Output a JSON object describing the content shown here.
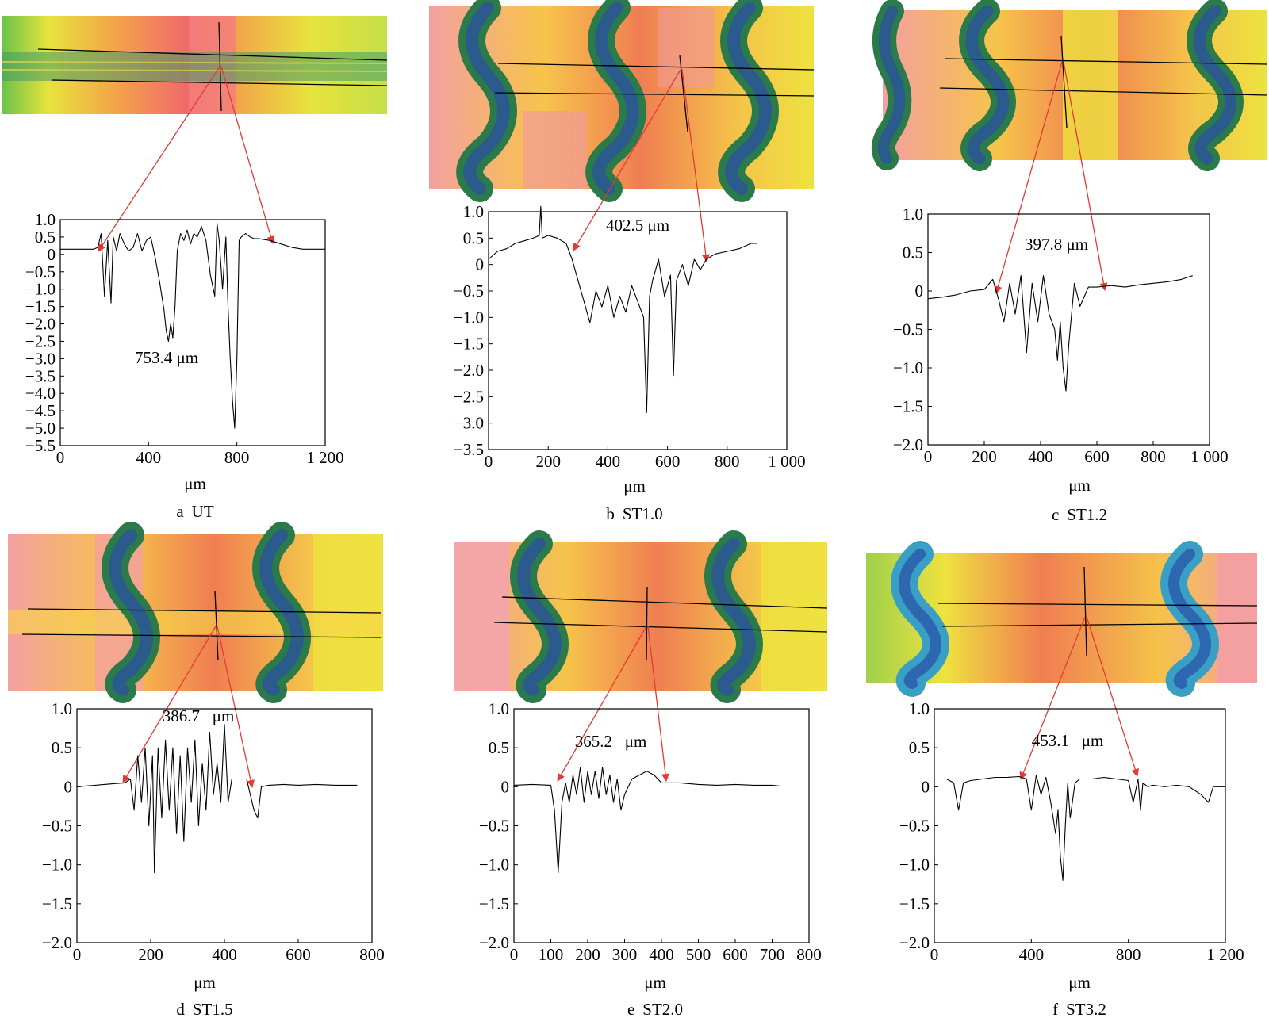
{
  "figure": {
    "panels": [
      {
        "id": "a",
        "caption_letter": "a",
        "caption_name": "UT",
        "measurement": "753.4 μm",
        "xlabel": "μm",
        "xticks": [
          {
            "v": 0,
            "t": "0"
          },
          {
            "v": 400,
            "t": "400"
          },
          {
            "v": 800,
            "t": "800"
          },
          {
            "v": 1200,
            "t": "1 200"
          }
        ],
        "yticks": [
          {
            "v": 1.0,
            "t": "1.0"
          },
          {
            "v": 0.5,
            "t": "0.5"
          },
          {
            "v": 0,
            "t": "0"
          },
          {
            "v": -0.5,
            "t": "−0.5"
          },
          {
            "v": -1.0,
            "t": "−1.0"
          },
          {
            "v": -1.5,
            "t": "−1.5"
          },
          {
            "v": -2.0,
            "t": "−2.0"
          },
          {
            "v": -2.5,
            "t": "−2.5"
          },
          {
            "v": -3.0,
            "t": "−3.0"
          },
          {
            "v": -3.5,
            "t": "−3.5"
          },
          {
            "v": -4.0,
            "t": "−4.0"
          },
          {
            "v": -4.5,
            "t": "−4.5"
          },
          {
            "v": -5.0,
            "t": "−5.0"
          },
          {
            "v": -5.5,
            "t": "−5.5"
          }
        ]
      },
      {
        "id": "b",
        "caption_letter": "b",
        "caption_name": "ST1.0",
        "measurement": "402.5 μm",
        "xlabel": "μm",
        "xticks": [
          {
            "v": 0,
            "t": "0"
          },
          {
            "v": 200,
            "t": "200"
          },
          {
            "v": 400,
            "t": "400"
          },
          {
            "v": 600,
            "t": "600"
          },
          {
            "v": 800,
            "t": "800"
          },
          {
            "v": 1000,
            "t": "1 000"
          }
        ],
        "yticks": [
          {
            "v": 1.0,
            "t": "1.0"
          },
          {
            "v": 0.5,
            "t": "0.5"
          },
          {
            "v": 0,
            "t": "0"
          },
          {
            "v": -0.5,
            "t": "−0.5"
          },
          {
            "v": -1.0,
            "t": "−1.0"
          },
          {
            "v": -1.5,
            "t": "−1.5"
          },
          {
            "v": -2.0,
            "t": "−2.0"
          },
          {
            "v": -2.5,
            "t": "−2.5"
          },
          {
            "v": -3.0,
            "t": "−3.0"
          },
          {
            "v": -3.5,
            "t": "−3.5"
          }
        ]
      },
      {
        "id": "c",
        "caption_letter": "c",
        "caption_name": "ST1.2",
        "measurement": "397.8 μm",
        "xlabel": "μm",
        "xticks": [
          {
            "v": 0,
            "t": "0"
          },
          {
            "v": 200,
            "t": "200"
          },
          {
            "v": 400,
            "t": "400"
          },
          {
            "v": 600,
            "t": "600"
          },
          {
            "v": 800,
            "t": "800"
          },
          {
            "v": 1000,
            "t": "1 000"
          }
        ],
        "yticks": [
          {
            "v": 1.0,
            "t": "1.0"
          },
          {
            "v": 0.5,
            "t": "0.5"
          },
          {
            "v": 0,
            "t": "0"
          },
          {
            "v": -0.5,
            "t": "−0.5"
          },
          {
            "v": -1.0,
            "t": "−1.0"
          },
          {
            "v": -1.5,
            "t": "−1.5"
          },
          {
            "v": -2.0,
            "t": "−2.0"
          }
        ]
      },
      {
        "id": "d",
        "caption_letter": "d",
        "caption_name": "ST1.5",
        "measurement": "386.7   μm",
        "xlabel": "μm",
        "xticks": [
          {
            "v": 0,
            "t": "0"
          },
          {
            "v": 200,
            "t": "200"
          },
          {
            "v": 400,
            "t": "400"
          },
          {
            "v": 600,
            "t": "600"
          },
          {
            "v": 800,
            "t": "800"
          }
        ],
        "yticks": [
          {
            "v": 1.0,
            "t": "1.0"
          },
          {
            "v": 0.5,
            "t": "0.5"
          },
          {
            "v": 0,
            "t": "0"
          },
          {
            "v": -0.5,
            "t": "−0.5"
          },
          {
            "v": -1.0,
            "t": "−1.0"
          },
          {
            "v": -1.5,
            "t": "−1.5"
          },
          {
            "v": -2.0,
            "t": "−2.0"
          }
        ]
      },
      {
        "id": "e",
        "caption_letter": "e",
        "caption_name": "ST2.0",
        "measurement": "365.2   μm",
        "xlabel": "μm",
        "xticks": [
          {
            "v": 0,
            "t": "0"
          },
          {
            "v": 100,
            "t": "100"
          },
          {
            "v": 200,
            "t": "200"
          },
          {
            "v": 300,
            "t": "300"
          },
          {
            "v": 400,
            "t": "400"
          },
          {
            "v": 500,
            "t": "500"
          },
          {
            "v": 600,
            "t": "600"
          },
          {
            "v": 700,
            "t": "700"
          },
          {
            "v": 800,
            "t": "800"
          }
        ],
        "yticks": [
          {
            "v": 1.0,
            "t": "1.0"
          },
          {
            "v": 0.5,
            "t": "0.5"
          },
          {
            "v": 0,
            "t": "0"
          },
          {
            "v": -0.5,
            "t": "−0.5"
          },
          {
            "v": -1.0,
            "t": "−1.0"
          },
          {
            "v": -1.5,
            "t": "−1.5"
          },
          {
            "v": -2.0,
            "t": "−2.0"
          }
        ]
      },
      {
        "id": "f",
        "caption_letter": "f",
        "caption_name": "ST3.2",
        "measurement": "453.1   μm",
        "xlabel": "μm",
        "xticks": [
          {
            "v": 0,
            "t": "0"
          },
          {
            "v": 400,
            "t": "400"
          },
          {
            "v": 800,
            "t": "800"
          },
          {
            "v": 1200,
            "t": "1 200"
          }
        ],
        "yticks": [
          {
            "v": 1.0,
            "t": "1.0"
          },
          {
            "v": 0.5,
            "t": "0.5"
          },
          {
            "v": 0,
            "t": "0"
          },
          {
            "v": -0.5,
            "t": "−0.5"
          },
          {
            "v": -1.0,
            "t": "−1.0"
          },
          {
            "v": -1.5,
            "t": "−1.5"
          },
          {
            "v": -2.0,
            "t": "−2.0"
          }
        ]
      }
    ]
  },
  "chart_data": [
    {
      "type": "line",
      "panel": "a",
      "xlabel": "μm",
      "ylabel": "",
      "xlim": [
        0,
        1200
      ],
      "ylim": [
        -5.5,
        1.0
      ],
      "grid": false,
      "series": [
        {
          "x": [
            0,
            100,
            150,
            170,
            185,
            200,
            215,
            230,
            240,
            255,
            270,
            290,
            310,
            330,
            350,
            370,
            390,
            410,
            430,
            450,
            470,
            480,
            490,
            500,
            510,
            520,
            530,
            545,
            560,
            575,
            590,
            605,
            620,
            640,
            660,
            680,
            700,
            710,
            720,
            735,
            750,
            760,
            770,
            780,
            790,
            800,
            810,
            820,
            840,
            860,
            880,
            900,
            950,
            1000,
            1050,
            1100,
            1150,
            1200
          ],
          "y": [
            0.15,
            0.15,
            0.15,
            0.2,
            0.6,
            -1.2,
            0.4,
            -1.4,
            0.5,
            0.1,
            0.6,
            0.3,
            0.1,
            0.2,
            0.6,
            0.1,
            0.4,
            0.5,
            -0.1,
            -0.8,
            -1.6,
            -2.2,
            -2.5,
            -2.0,
            -2.4,
            -1.5,
            0.1,
            0.6,
            0.4,
            0.7,
            0.3,
            0.6,
            0.5,
            0.8,
            0.4,
            -0.6,
            -1.2,
            0.9,
            0.4,
            -1.0,
            0.5,
            -1.5,
            -3.0,
            -4.2,
            -5.0,
            -3.0,
            0.4,
            0.5,
            0.6,
            0.5,
            0.45,
            0.45,
            0.4,
            0.3,
            0.2,
            0.15,
            0.15,
            0.15
          ]
        }
      ]
    },
    {
      "type": "line",
      "panel": "b",
      "xlabel": "μm",
      "ylabel": "",
      "xlim": [
        0,
        1000
      ],
      "ylim": [
        -3.5,
        1.0
      ],
      "grid": false,
      "series": [
        {
          "x": [
            0,
            30,
            60,
            90,
            120,
            150,
            170,
            175,
            180,
            200,
            230,
            260,
            280,
            300,
            320,
            340,
            360,
            380,
            400,
            420,
            440,
            460,
            480,
            500,
            520,
            530,
            540,
            550,
            570,
            590,
            610,
            620,
            630,
            650,
            670,
            690,
            710,
            730,
            760,
            800,
            840,
            880,
            900
          ],
          "y": [
            0.1,
            0.25,
            0.3,
            0.4,
            0.45,
            0.5,
            0.55,
            1.1,
            0.5,
            0.55,
            0.5,
            0.4,
            0.1,
            -0.3,
            -0.7,
            -1.1,
            -0.5,
            -0.8,
            -0.4,
            -1.0,
            -0.6,
            -0.9,
            -0.4,
            -0.7,
            -1.0,
            -2.8,
            -0.6,
            -0.3,
            0.1,
            -0.6,
            -0.2,
            -2.1,
            -0.3,
            0.0,
            -0.4,
            0.1,
            -0.1,
            0.1,
            0.2,
            0.25,
            0.3,
            0.4,
            0.4
          ]
        }
      ]
    },
    {
      "type": "line",
      "panel": "c",
      "xlabel": "μm",
      "ylabel": "",
      "xlim": [
        0,
        1000
      ],
      "ylim": [
        -2.0,
        1.0
      ],
      "grid": false,
      "series": [
        {
          "x": [
            0,
            50,
            100,
            150,
            200,
            230,
            250,
            270,
            290,
            310,
            330,
            350,
            370,
            390,
            410,
            430,
            450,
            460,
            470,
            480,
            490,
            500,
            520,
            540,
            570,
            600,
            650,
            700,
            750,
            800,
            850,
            900,
            940
          ],
          "y": [
            -0.1,
            -0.08,
            -0.05,
            0.0,
            0.02,
            0.15,
            -0.1,
            -0.4,
            0.1,
            -0.3,
            0.2,
            -0.8,
            0.1,
            -0.4,
            0.2,
            -0.3,
            -0.5,
            -0.9,
            -0.4,
            -1.0,
            -1.3,
            -0.7,
            0.1,
            -0.2,
            0.05,
            0.05,
            0.07,
            0.05,
            0.08,
            0.1,
            0.12,
            0.15,
            0.2
          ]
        }
      ]
    },
    {
      "type": "line",
      "panel": "d",
      "xlabel": "μm",
      "ylabel": "",
      "xlim": [
        0,
        800
      ],
      "ylim": [
        -2.0,
        1.0
      ],
      "grid": false,
      "series": [
        {
          "x": [
            0,
            50,
            100,
            130,
            145,
            155,
            165,
            175,
            185,
            195,
            205,
            210,
            220,
            230,
            240,
            250,
            260,
            270,
            280,
            290,
            300,
            310,
            320,
            330,
            340,
            350,
            360,
            370,
            380,
            390,
            400,
            410,
            420,
            440,
            460,
            480,
            490,
            500,
            520,
            560,
            600,
            650,
            700,
            760
          ],
          "y": [
            0.0,
            0.02,
            0.04,
            0.05,
            0.1,
            -0.3,
            0.4,
            -0.2,
            0.5,
            -0.5,
            0.4,
            -1.1,
            0.5,
            -0.4,
            0.6,
            -0.3,
            0.5,
            -0.6,
            0.4,
            -0.7,
            0.5,
            -0.2,
            0.6,
            -0.5,
            0.3,
            -0.3,
            0.7,
            -0.1,
            0.3,
            -0.2,
            0.8,
            -0.2,
            0.1,
            0.1,
            0.1,
            -0.3,
            -0.4,
            0.0,
            0.02,
            0.03,
            0.02,
            0.03,
            0.02,
            0.02
          ]
        }
      ]
    },
    {
      "type": "line",
      "panel": "e",
      "xlabel": "μm",
      "ylabel": "",
      "xlim": [
        0,
        800
      ],
      "ylim": [
        -2.0,
        1.0
      ],
      "grid": false,
      "series": [
        {
          "x": [
            0,
            50,
            100,
            110,
            120,
            130,
            140,
            150,
            160,
            170,
            180,
            190,
            200,
            210,
            220,
            230,
            240,
            250,
            260,
            270,
            280,
            290,
            300,
            320,
            340,
            360,
            380,
            400,
            450,
            500,
            550,
            600,
            650,
            700,
            720
          ],
          "y": [
            0.02,
            0.03,
            0.02,
            -0.3,
            -1.1,
            -0.2,
            0.05,
            -0.2,
            0.15,
            -0.1,
            0.25,
            -0.2,
            0.2,
            -0.1,
            0.2,
            -0.15,
            0.25,
            -0.1,
            0.15,
            -0.2,
            0.1,
            -0.3,
            -0.1,
            0.1,
            0.15,
            0.2,
            0.15,
            0.05,
            0.05,
            0.03,
            0.02,
            0.03,
            0.02,
            0.02,
            0.01
          ]
        }
      ]
    },
    {
      "type": "line",
      "panel": "f",
      "xlabel": "μm",
      "ylabel": "",
      "xlim": [
        0,
        1200
      ],
      "ylim": [
        -2.0,
        1.0
      ],
      "grid": false,
      "series": [
        {
          "x": [
            0,
            50,
            80,
            100,
            120,
            150,
            200,
            250,
            300,
            350,
            380,
            400,
            420,
            440,
            460,
            480,
            500,
            510,
            520,
            530,
            540,
            550,
            560,
            580,
            600,
            650,
            700,
            750,
            800,
            820,
            840,
            850,
            860,
            880,
            900,
            950,
            1000,
            1050,
            1100,
            1130,
            1150,
            1200
          ],
          "y": [
            0.1,
            0.1,
            0.05,
            -0.3,
            0.05,
            0.08,
            0.1,
            0.12,
            0.12,
            0.13,
            0.1,
            -0.3,
            0.15,
            -0.1,
            0.12,
            -0.2,
            -0.6,
            -0.3,
            -0.9,
            -1.2,
            -0.5,
            0.05,
            -0.4,
            0.05,
            0.1,
            0.1,
            0.12,
            0.1,
            0.08,
            -0.2,
            0.1,
            -0.3,
            0.05,
            0.0,
            0.02,
            0.0,
            0.02,
            0.0,
            -0.1,
            -0.2,
            0.0,
            0.0
          ]
        }
      ]
    }
  ],
  "colors": {
    "line": "#000000",
    "arrow": "#e53935",
    "map_yellow": "#eae03e",
    "map_orange": "#f28a3c",
    "map_pink": "#f2a3a3",
    "map_green": "#2e8b3c",
    "map_blue": "#2b5a8c"
  }
}
